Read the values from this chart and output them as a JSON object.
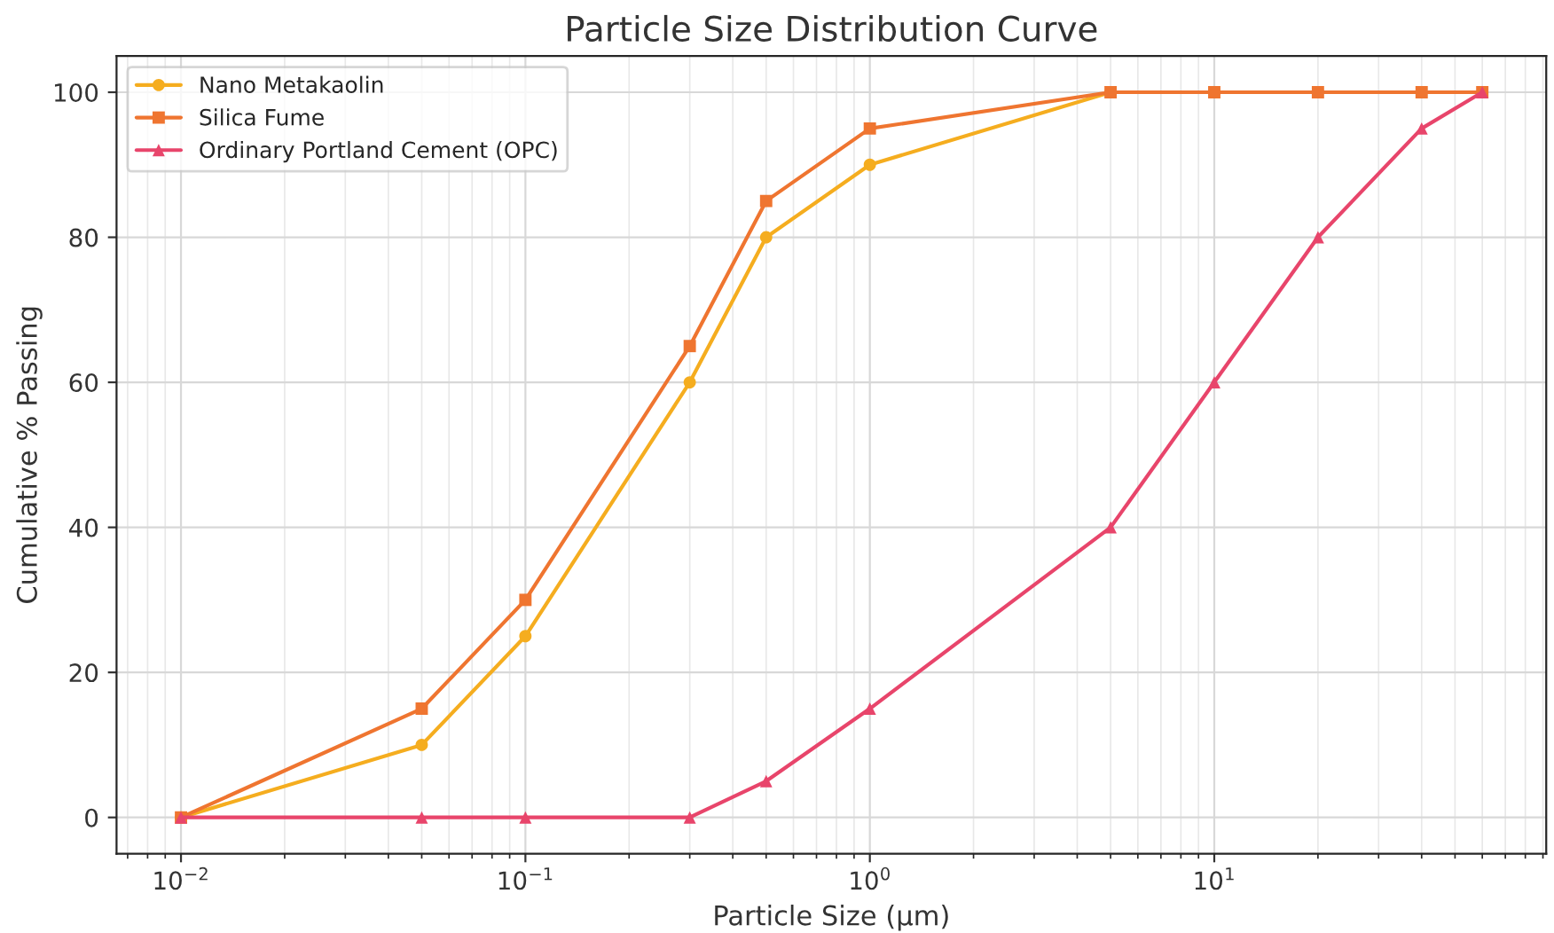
{
  "chart_data": {
    "type": "line",
    "title": "Particle Size Distribution Curve",
    "xlabel": "Particle Size (μm)",
    "ylabel": "Cumulative % Passing",
    "x": [
      0.01,
      0.05,
      0.1,
      0.3,
      0.5,
      1,
      5,
      10,
      20,
      40,
      60
    ],
    "series": [
      {
        "name": "Nano Metakaolin",
        "color": "#f5ad1f",
        "marker": "circle",
        "values": [
          0,
          10,
          25,
          60,
          80,
          90,
          100,
          100,
          null,
          null,
          null
        ]
      },
      {
        "name": "Silica Fume",
        "color": "#ef7530",
        "marker": "square",
        "values": [
          0,
          15,
          30,
          65,
          85,
          95,
          100,
          100,
          100,
          100,
          100
        ]
      },
      {
        "name": "Ordinary Portland Cement (OPC)",
        "color": "#e8456b",
        "marker": "triangle",
        "values": [
          0,
          0,
          0,
          0,
          5,
          15,
          40,
          60,
          80,
          95,
          100
        ]
      }
    ],
    "log": "x",
    "xlim": [
      0.0065,
      92
    ],
    "ylim": [
      -5,
      105
    ],
    "xticks": [
      {
        "value": 0.007,
        "label": null
      },
      {
        "value": 0.008,
        "label": null
      },
      {
        "value": 0.009,
        "label": null
      },
      {
        "value": 0.01,
        "label": "10$^{−2}$"
      },
      {
        "value": 0.02,
        "label": null
      },
      {
        "value": 0.03,
        "label": null
      },
      {
        "value": 0.04,
        "label": null
      },
      {
        "value": 0.05,
        "label": null
      },
      {
        "value": 0.06,
        "label": null
      },
      {
        "value": 0.07,
        "label": null
      },
      {
        "value": 0.08,
        "label": null
      },
      {
        "value": 0.09,
        "label": null
      },
      {
        "value": 0.1,
        "label": "10$^{−1}$"
      },
      {
        "value": 0.2,
        "label": null
      },
      {
        "value": 0.3,
        "label": null
      },
      {
        "value": 0.4,
        "label": null
      },
      {
        "value": 0.5,
        "label": null
      },
      {
        "value": 0.6,
        "label": null
      },
      {
        "value": 0.7,
        "label": null
      },
      {
        "value": 0.8,
        "label": null
      },
      {
        "value": 0.9,
        "label": null
      },
      {
        "value": 1,
        "label": "10$^{0}$"
      },
      {
        "value": 2,
        "label": null
      },
      {
        "value": 3,
        "label": null
      },
      {
        "value": 4,
        "label": null
      },
      {
        "value": 5,
        "label": null
      },
      {
        "value": 6,
        "label": null
      },
      {
        "value": 7,
        "label": null
      },
      {
        "value": 8,
        "label": null
      },
      {
        "value": 9,
        "label": null
      },
      {
        "value": 10,
        "label": "10$^{1}$"
      },
      {
        "value": 20,
        "label": null
      },
      {
        "value": 30,
        "label": null
      },
      {
        "value": 40,
        "label": null
      },
      {
        "value": 50,
        "label": null
      },
      {
        "value": 60,
        "label": null
      },
      {
        "value": 70,
        "label": null
      },
      {
        "value": 80,
        "label": null
      },
      {
        "value": 90,
        "label": null
      }
    ],
    "yticks": [
      0,
      20,
      40,
      60,
      80,
      100
    ],
    "grid": true,
    "legend": "top left",
    "line_style": "solid"
  }
}
